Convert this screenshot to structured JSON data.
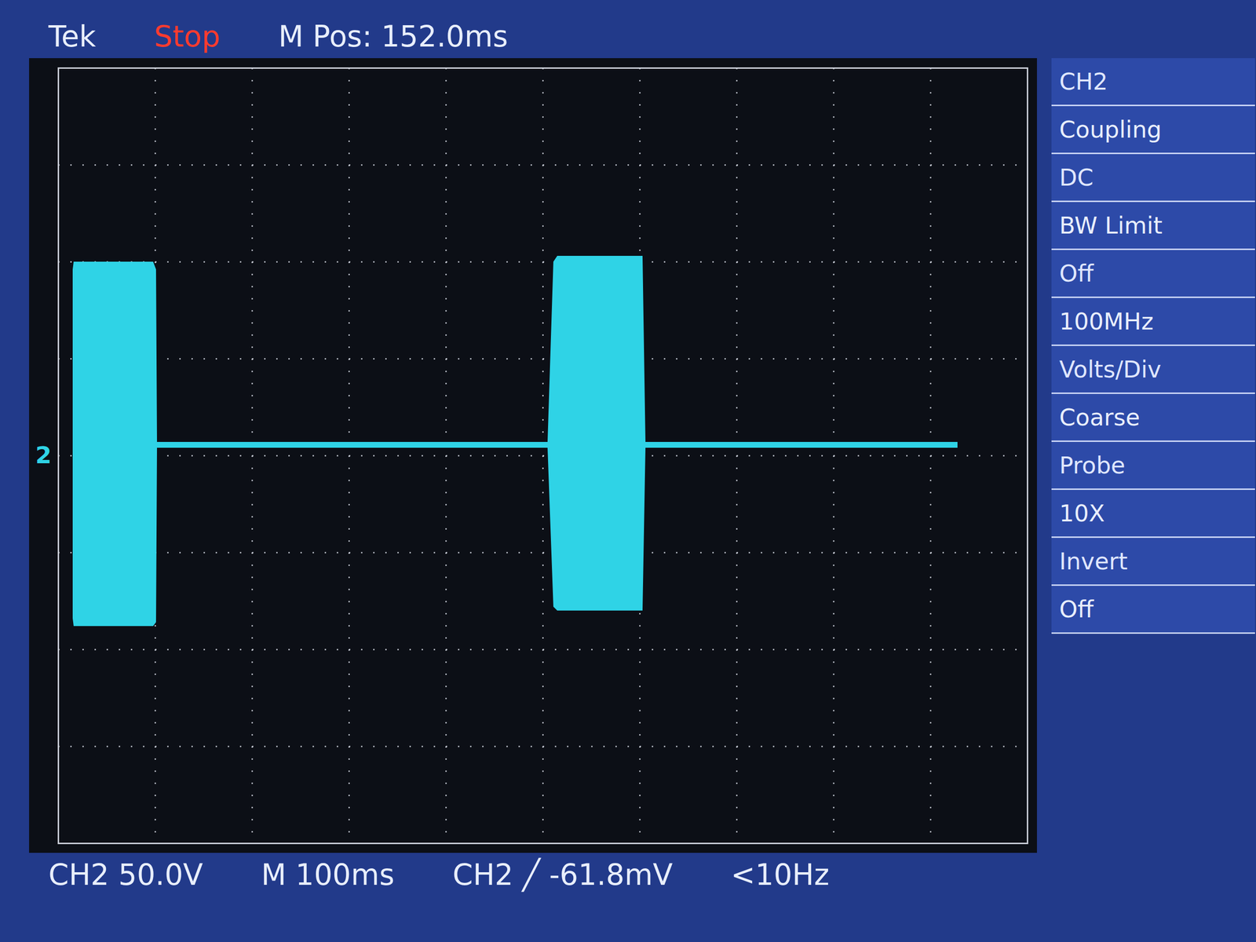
{
  "chart_data": {
    "type": "area",
    "x": [
      15,
      16,
      98,
      101,
      102,
      505,
      511,
      515,
      603,
      606,
      928
    ],
    "upper": [
      96,
      100,
      100,
      96,
      7,
      7,
      100,
      103,
      103,
      7,
      7
    ],
    "lower": [
      -84,
      -88,
      -88,
      -86,
      4,
      4,
      -78,
      -80,
      -80,
      4,
      4
    ],
    "color": "#2fd3e6",
    "xlim": [
      0,
      1000
    ],
    "xticks": [
      0,
      100,
      200,
      300,
      400,
      500,
      600,
      700,
      800,
      900,
      1000
    ],
    "ylim": [
      -200,
      200
    ],
    "yticks": [
      -200,
      -150,
      -100,
      -50,
      0,
      50,
      100,
      150,
      200
    ],
    "grid": true,
    "tick_labels": false,
    "annotations": [
      {
        "text": "2",
        "y": 0
      }
    ],
    "header": [
      "Tek",
      "Stop",
      "M Pos: 152.0ms"
    ],
    "footer": [
      "CH2 50.0V",
      "M 100ms",
      "CH2 ╱ -61.8mV",
      "<10Hz"
    ],
    "side_menu": [
      "CH2",
      "Coupling",
      "DC",
      "BW Limit",
      "Off",
      "100MHz",
      "Volts/Div",
      "Coarse",
      "Probe",
      "10X",
      "Invert",
      "Off"
    ]
  }
}
